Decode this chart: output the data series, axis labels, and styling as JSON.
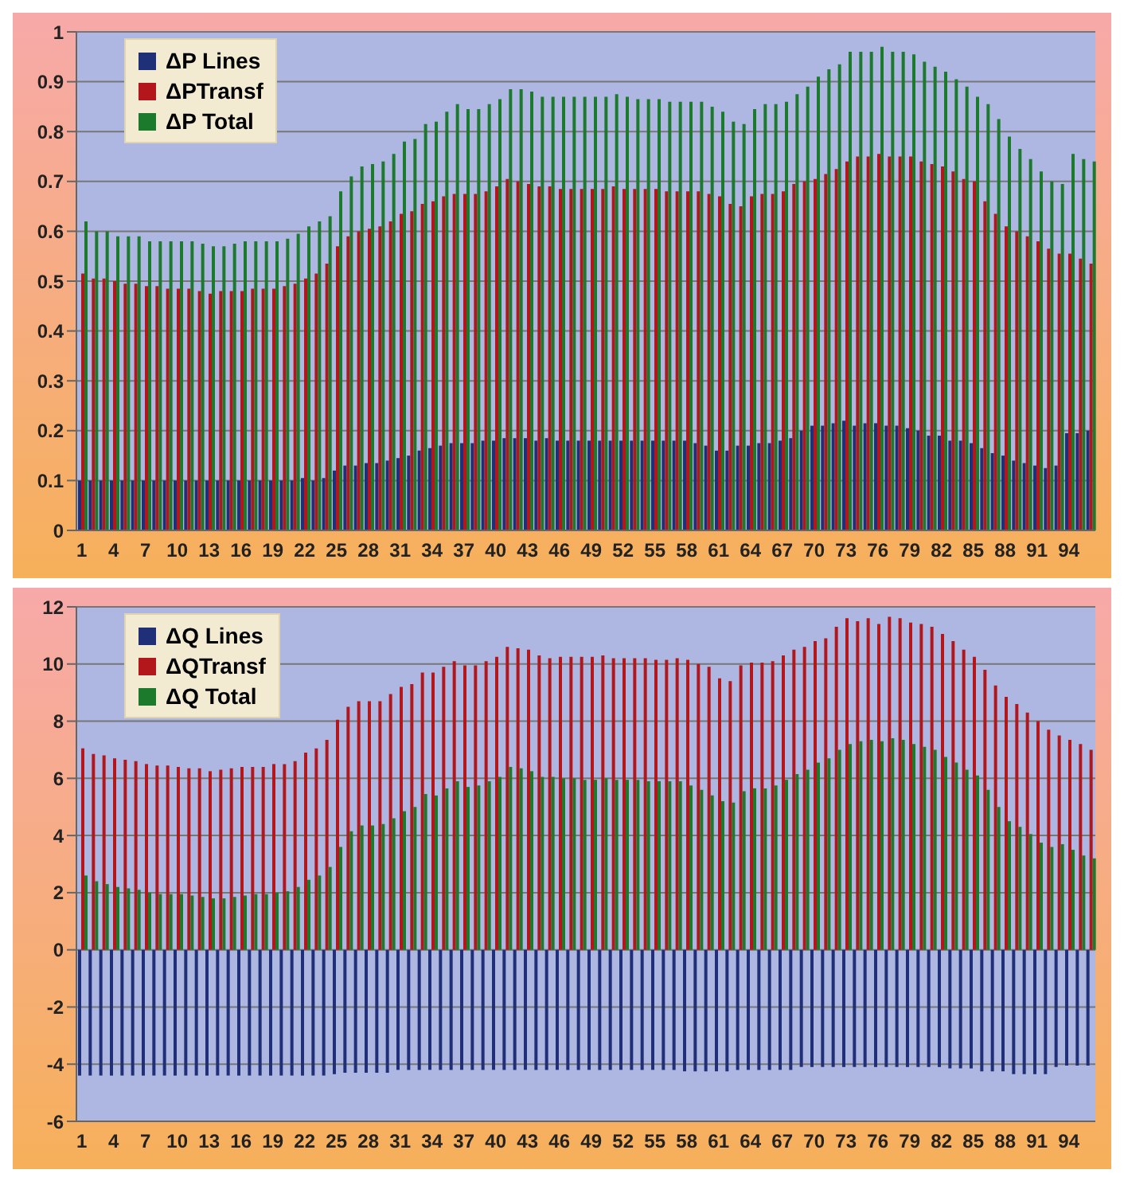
{
  "chart_data": [
    {
      "type": "bar",
      "categories": [
        "1",
        null,
        null,
        "4",
        null,
        null,
        "7",
        null,
        null,
        "10",
        null,
        null,
        "13",
        null,
        null,
        "16",
        null,
        null,
        "19",
        null,
        null,
        "22",
        null,
        null,
        "25",
        null,
        null,
        "28",
        null,
        null,
        "31",
        null,
        null,
        "34",
        null,
        null,
        "37",
        null,
        null,
        "40",
        null,
        null,
        "43",
        null,
        null,
        "46",
        null,
        null,
        "49",
        null,
        null,
        "52",
        null,
        null,
        "55",
        null,
        null,
        "58",
        null,
        null,
        "61",
        null,
        null,
        "64",
        null,
        null,
        "67",
        null,
        null,
        "70",
        null,
        null,
        "73",
        null,
        null,
        "76",
        null,
        null,
        "79",
        null,
        null,
        "82",
        null,
        null,
        "85",
        null,
        null,
        "88",
        null,
        null,
        "91",
        null,
        null,
        "94",
        null,
        null
      ],
      "series": [
        {
          "name": "ΔP Lines",
          "color": "#1f2f78",
          "values": [
            0.1,
            0.1,
            0.1,
            0.1,
            0.1,
            0.1,
            0.1,
            0.1,
            0.1,
            0.1,
            0.1,
            0.1,
            0.1,
            0.1,
            0.1,
            0.1,
            0.1,
            0.1,
            0.1,
            0.1,
            0.1,
            0.105,
            0.1,
            0.105,
            0.12,
            0.13,
            0.13,
            0.135,
            0.135,
            0.14,
            0.145,
            0.15,
            0.16,
            0.165,
            0.17,
            0.175,
            0.175,
            0.175,
            0.18,
            0.18,
            0.185,
            0.185,
            0.185,
            0.18,
            0.185,
            0.18,
            0.18,
            0.18,
            0.18,
            0.18,
            0.18,
            0.18,
            0.18,
            0.18,
            0.18,
            0.18,
            0.18,
            0.18,
            0.175,
            0.17,
            0.16,
            0.16,
            0.17,
            0.17,
            0.175,
            0.175,
            0.18,
            0.185,
            0.2,
            0.21,
            0.21,
            0.215,
            0.22,
            0.21,
            0.215,
            0.215,
            0.21,
            0.21,
            0.205,
            0.2,
            0.19,
            0.19,
            0.18,
            0.18,
            0.175,
            0.165,
            0.155,
            0.15,
            0.14,
            0.135,
            0.13,
            0.125,
            0.13,
            0.195,
            0.195,
            0.2
          ]
        },
        {
          "name": "ΔPTransf",
          "color": "#b3161b",
          "values": [
            0.515,
            0.505,
            0.505,
            0.5,
            0.495,
            0.495,
            0.49,
            0.49,
            0.485,
            0.485,
            0.485,
            0.48,
            0.475,
            0.48,
            0.48,
            0.48,
            0.485,
            0.485,
            0.485,
            0.49,
            0.495,
            0.505,
            0.515,
            0.535,
            0.57,
            0.59,
            0.6,
            0.605,
            0.61,
            0.62,
            0.635,
            0.64,
            0.655,
            0.66,
            0.67,
            0.675,
            0.675,
            0.675,
            0.68,
            0.69,
            0.705,
            0.7,
            0.695,
            0.69,
            0.69,
            0.685,
            0.685,
            0.685,
            0.685,
            0.685,
            0.69,
            0.685,
            0.685,
            0.685,
            0.685,
            0.68,
            0.68,
            0.68,
            0.68,
            0.675,
            0.67,
            0.655,
            0.65,
            0.67,
            0.675,
            0.675,
            0.68,
            0.695,
            0.7,
            0.705,
            0.715,
            0.725,
            0.74,
            0.75,
            0.75,
            0.755,
            0.75,
            0.75,
            0.75,
            0.74,
            0.735,
            0.73,
            0.72,
            0.705,
            0.7,
            0.66,
            0.635,
            0.61,
            0.6,
            0.59,
            0.58,
            0.565,
            0.555,
            0.555,
            0.545,
            0.535
          ]
        },
        {
          "name": "ΔP Total",
          "color": "#1c7a2c",
          "values": [
            0.62,
            0.6,
            0.6,
            0.59,
            0.59,
            0.59,
            0.58,
            0.58,
            0.58,
            0.58,
            0.58,
            0.575,
            0.57,
            0.57,
            0.575,
            0.58,
            0.58,
            0.58,
            0.58,
            0.585,
            0.595,
            0.61,
            0.62,
            0.63,
            0.68,
            0.71,
            0.73,
            0.735,
            0.74,
            0.755,
            0.78,
            0.785,
            0.815,
            0.82,
            0.84,
            0.855,
            0.845,
            0.845,
            0.855,
            0.865,
            0.885,
            0.885,
            0.88,
            0.87,
            0.87,
            0.87,
            0.87,
            0.87,
            0.87,
            0.87,
            0.875,
            0.87,
            0.865,
            0.865,
            0.865,
            0.86,
            0.86,
            0.86,
            0.86,
            0.85,
            0.84,
            0.82,
            0.815,
            0.845,
            0.855,
            0.855,
            0.86,
            0.875,
            0.89,
            0.91,
            0.925,
            0.935,
            0.96,
            0.96,
            0.96,
            0.97,
            0.96,
            0.96,
            0.955,
            0.94,
            0.93,
            0.92,
            0.905,
            0.89,
            0.87,
            0.855,
            0.825,
            0.79,
            0.765,
            0.745,
            0.72,
            0.7,
            0.695,
            0.755,
            0.745,
            0.74
          ]
        }
      ],
      "ylim": [
        0,
        1
      ],
      "yticks": [
        0,
        0.1,
        0.2,
        0.3,
        0.4,
        0.5,
        0.6,
        0.7,
        0.8,
        0.9,
        1
      ],
      "grid": "y",
      "legend": "top left"
    },
    {
      "type": "bar",
      "categories": [
        "1",
        null,
        null,
        "4",
        null,
        null,
        "7",
        null,
        null,
        "10",
        null,
        null,
        "13",
        null,
        null,
        "16",
        null,
        null,
        "19",
        null,
        null,
        "22",
        null,
        null,
        "25",
        null,
        null,
        "28",
        null,
        null,
        "31",
        null,
        null,
        "34",
        null,
        null,
        "37",
        null,
        null,
        "40",
        null,
        null,
        "43",
        null,
        null,
        "46",
        null,
        null,
        "49",
        null,
        null,
        "52",
        null,
        null,
        "55",
        null,
        null,
        "58",
        null,
        null,
        "61",
        null,
        null,
        "64",
        null,
        null,
        "67",
        null,
        null,
        "70",
        null,
        null,
        "73",
        null,
        null,
        "76",
        null,
        null,
        "79",
        null,
        null,
        "82",
        null,
        null,
        "85",
        null,
        null,
        "88",
        null,
        null,
        "91",
        null,
        null,
        "94",
        null,
        null
      ],
      "series": [
        {
          "name": "ΔQ Lines",
          "color": "#1f2f78",
          "values": [
            -4.4,
            -4.4,
            -4.4,
            -4.4,
            -4.4,
            -4.4,
            -4.4,
            -4.4,
            -4.4,
            -4.4,
            -4.4,
            -4.4,
            -4.4,
            -4.4,
            -4.4,
            -4.4,
            -4.4,
            -4.4,
            -4.4,
            -4.4,
            -4.4,
            -4.4,
            -4.4,
            -4.4,
            -4.35,
            -4.3,
            -4.3,
            -4.3,
            -4.3,
            -4.3,
            -4.2,
            -4.2,
            -4.2,
            -4.2,
            -4.2,
            -4.2,
            -4.2,
            -4.2,
            -4.2,
            -4.2,
            -4.2,
            -4.2,
            -4.2,
            -4.2,
            -4.2,
            -4.2,
            -4.2,
            -4.2,
            -4.2,
            -4.2,
            -4.2,
            -4.2,
            -4.2,
            -4.2,
            -4.2,
            -4.2,
            -4.2,
            -4.25,
            -4.25,
            -4.25,
            -4.25,
            -4.25,
            -4.2,
            -4.2,
            -4.2,
            -4.2,
            -4.2,
            -4.2,
            -4.1,
            -4.1,
            -4.1,
            -4.1,
            -4.1,
            -4.1,
            -4.1,
            -4.1,
            -4.1,
            -4.1,
            -4.1,
            -4.1,
            -4.1,
            -4.1,
            -4.15,
            -4.15,
            -4.15,
            -4.25,
            -4.25,
            -4.25,
            -4.35,
            -4.35,
            -4.35,
            -4.35,
            -4.1,
            -4.05,
            -4.05,
            -4.05
          ]
        },
        {
          "name": "ΔQTransf",
          "color": "#b3161b",
          "values": [
            7.05,
            6.85,
            6.8,
            6.7,
            6.65,
            6.6,
            6.5,
            6.45,
            6.45,
            6.4,
            6.35,
            6.35,
            6.25,
            6.3,
            6.35,
            6.4,
            6.4,
            6.4,
            6.5,
            6.5,
            6.6,
            6.9,
            7.05,
            7.35,
            8.05,
            8.5,
            8.7,
            8.7,
            8.7,
            8.95,
            9.2,
            9.3,
            9.7,
            9.7,
            9.9,
            10.1,
            9.95,
            9.95,
            10.1,
            10.25,
            10.6,
            10.55,
            10.5,
            10.3,
            10.2,
            10.25,
            10.25,
            10.25,
            10.25,
            10.3,
            10.2,
            10.2,
            10.2,
            10.2,
            10.15,
            10.15,
            10.2,
            10.15,
            10,
            9.9,
            9.5,
            9.4,
            9.95,
            10.05,
            10.05,
            10.1,
            10.3,
            10.5,
            10.6,
            10.8,
            10.9,
            11.3,
            11.6,
            11.5,
            11.6,
            11.4,
            11.65,
            11.6,
            11.45,
            11.4,
            11.3,
            11.05,
            10.8,
            10.5,
            10.25,
            9.8,
            9.25,
            8.85,
            8.6,
            8.3,
            8,
            7.7,
            7.5,
            7.35,
            7.2,
            7
          ]
        },
        {
          "name": "ΔQ Total",
          "color": "#1c7a2c",
          "values": [
            2.6,
            2.4,
            2.3,
            2.2,
            2.15,
            2.1,
            2,
            1.95,
            1.95,
            1.95,
            1.9,
            1.85,
            1.8,
            1.8,
            1.85,
            1.9,
            1.95,
            1.95,
            2,
            2.05,
            2.2,
            2.45,
            2.6,
            2.9,
            3.6,
            4.15,
            4.35,
            4.35,
            4.4,
            4.6,
            4.85,
            5,
            5.45,
            5.4,
            5.65,
            5.9,
            5.7,
            5.75,
            5.9,
            6.05,
            6.4,
            6.35,
            6.25,
            6.05,
            6.05,
            6,
            6,
            5.95,
            5.95,
            6,
            5.95,
            5.95,
            5.95,
            5.9,
            5.9,
            5.9,
            5.9,
            5.75,
            5.6,
            5.4,
            5.2,
            5.15,
            5.55,
            5.65,
            5.65,
            5.75,
            5.95,
            6.15,
            6.3,
            6.55,
            6.7,
            7,
            7.2,
            7.3,
            7.35,
            7.3,
            7.4,
            7.35,
            7.2,
            7.1,
            7,
            6.75,
            6.55,
            6.3,
            6.1,
            5.6,
            5,
            4.5,
            4.3,
            4.05,
            3.75,
            3.6,
            3.7,
            3.5,
            3.3,
            3.2
          ]
        }
      ],
      "ylim": [
        -6,
        12
      ],
      "yticks": [
        -6,
        -4,
        -2,
        0,
        2,
        4,
        6,
        8,
        10,
        12
      ],
      "grid": "y",
      "legend": "top left"
    }
  ]
}
